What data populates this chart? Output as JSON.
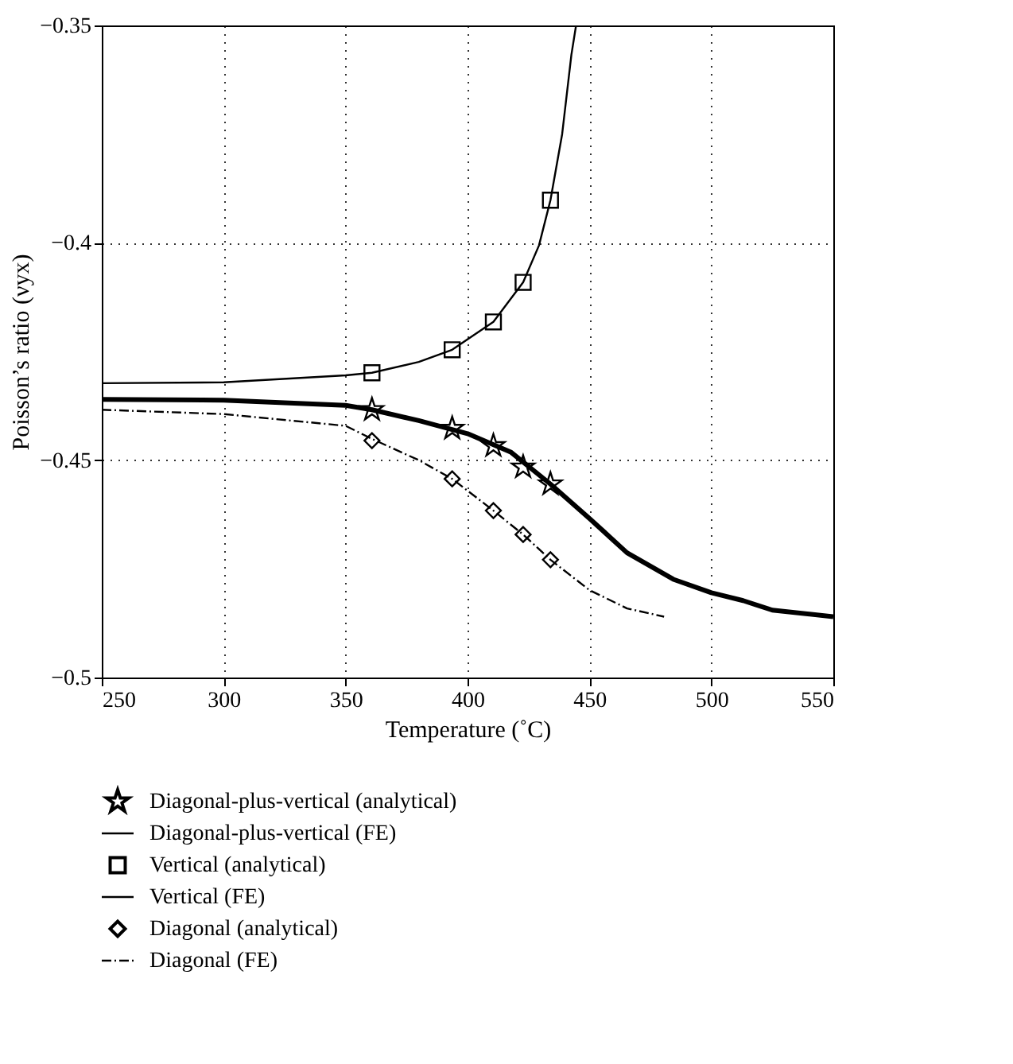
{
  "chart_data": {
    "type": "line",
    "xlabel": "Temperature (˚C)",
    "ylabel": "Poisson’s ratio (νyx)",
    "xlim": [
      250,
      550
    ],
    "xticks": [
      250,
      300,
      350,
      400,
      450,
      500,
      550
    ],
    "ylim": [
      -0.5,
      -0.35
    ],
    "yticks": [
      {
        "value": -0.5,
        "label": "−0.5"
      },
      {
        "value": -0.45,
        "label": "−0.45"
      },
      {
        "value": -0.4,
        "label": "−0.4"
      },
      {
        "value": -0.35,
        "label": "−0.35"
      }
    ],
    "grid": true,
    "legend": "bottom",
    "series": [
      {
        "name": "Diagonal-plus-vertical (analytical)",
        "type": "scatter",
        "marker": "star",
        "color": "#000000",
        "x": [
          360.8,
          393.7,
          410.6,
          422.8,
          434.0
        ],
        "values": [
          -0.4384,
          -0.4427,
          -0.4467,
          -0.4516,
          -0.4555
        ]
      },
      {
        "name": "Diagonal-plus-vertical (FE)",
        "type": "line",
        "line_style": "solid",
        "color": "#000000",
        "x": [
          250,
          300,
          350,
          360.8,
          380,
          400,
          417.9,
          434.0,
          450,
          465.4,
          484.4,
          500,
          513,
          525,
          550
        ],
        "values": [
          -0.436,
          -0.4362,
          -0.4374,
          -0.4384,
          -0.4409,
          -0.4439,
          -0.4482,
          -0.4555,
          -0.4634,
          -0.4713,
          -0.4774,
          -0.4805,
          -0.4823,
          -0.4845,
          -0.486
        ]
      },
      {
        "name": "Vertical (analytical)",
        "type": "scatter",
        "marker": "square",
        "color": "#000000",
        "x": [
          360.8,
          393.7,
          410.6,
          422.8,
          434.0
        ],
        "values": [
          -0.4299,
          -0.4246,
          -0.4182,
          -0.4091,
          -0.3902
        ]
      },
      {
        "name": "Vertical (FE)",
        "type": "line",
        "line_style": "solid",
        "color": "#000000",
        "x": [
          250,
          300,
          350,
          360.8,
          380,
          393.7,
          410.6,
          422.8,
          429.3,
          434.0,
          438.8,
          442.6,
          444.5
        ],
        "values": [
          -0.4323,
          -0.4321,
          -0.4305,
          -0.4299,
          -0.4274,
          -0.4246,
          -0.4182,
          -0.4091,
          -0.4006,
          -0.3902,
          -0.375,
          -0.3567,
          -0.35
        ]
      },
      {
        "name": "Diagonal (analytical)",
        "type": "scatter",
        "marker": "diamond",
        "color": "#000000",
        "x": [
          360.8,
          393.7,
          410.6,
          422.8,
          434.0
        ],
        "values": [
          -0.4455,
          -0.4543,
          -0.4616,
          -0.4671,
          -0.4729
        ]
      },
      {
        "name": "Diagonal (FE)",
        "type": "line",
        "line_style": "dashdot",
        "color": "#000000",
        "x": [
          250,
          300,
          350,
          360.8,
          380,
          393.7,
          410.6,
          422.8,
          434.0,
          450,
          465.4,
          480.6
        ],
        "values": [
          -0.4384,
          -0.4394,
          -0.4421,
          -0.4451,
          -0.45,
          -0.4543,
          -0.4616,
          -0.4671,
          -0.4729,
          -0.4799,
          -0.4841,
          -0.486
        ]
      }
    ]
  }
}
